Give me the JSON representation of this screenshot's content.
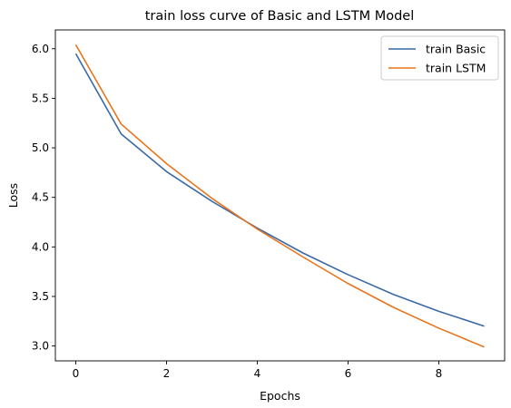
{
  "chart_data": {
    "type": "line",
    "title": "train loss curve of Basic and LSTM Model",
    "xlabel": "Epochs",
    "ylabel": "Loss",
    "x": [
      0,
      1,
      2,
      3,
      4,
      5,
      6,
      7,
      8,
      9
    ],
    "xlim": [
      -0.45,
      9.45
    ],
    "ylim": [
      2.85,
      6.19
    ],
    "xticks": [
      0,
      2,
      4,
      6,
      8
    ],
    "yticks": [
      3.0,
      3.5,
      4.0,
      4.5,
      5.0,
      5.5,
      6.0
    ],
    "grid": false,
    "legend_position": "top-right",
    "series": [
      {
        "name": "train Basic",
        "color": "#3a6aa6",
        "values": [
          5.95,
          5.14,
          4.76,
          4.46,
          4.19,
          3.94,
          3.72,
          3.52,
          3.35,
          3.2
        ]
      },
      {
        "name": "train LSTM",
        "color": "#e8741c",
        "values": [
          6.04,
          5.24,
          4.84,
          4.49,
          4.18,
          3.9,
          3.63,
          3.39,
          3.18,
          2.99
        ]
      }
    ]
  }
}
